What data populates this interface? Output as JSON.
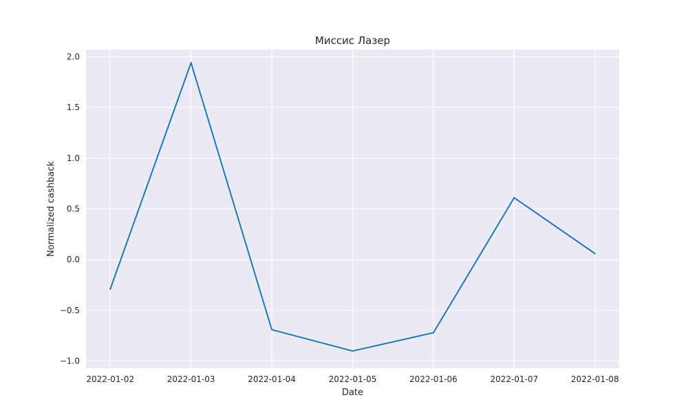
{
  "chart_data": {
    "type": "line",
    "title": "Миссис Лазер",
    "xlabel": "Date",
    "ylabel": "Normalized cashback",
    "x": [
      "2022-01-02",
      "2022-01-03",
      "2022-01-04",
      "2022-01-05",
      "2022-01-06",
      "2022-01-07",
      "2022-01-08"
    ],
    "series": [
      {
        "values": [
          -0.29,
          1.94,
          -0.69,
          -0.9,
          -0.72,
          0.61,
          0.06
        ]
      }
    ],
    "ylim": [
      -1.07,
      2.07
    ],
    "yticks": [
      -1.0,
      -0.5,
      0.0,
      0.5,
      1.0,
      1.5,
      2.0
    ],
    "ytick_labels": [
      "−1.0",
      "−0.5",
      "0.0",
      "0.5",
      "1.0",
      "1.5",
      "2.0"
    ],
    "grid": true,
    "colors": {
      "background": "#eaeaf2",
      "grid": "#ffffff",
      "line": "#1f77b4"
    }
  }
}
